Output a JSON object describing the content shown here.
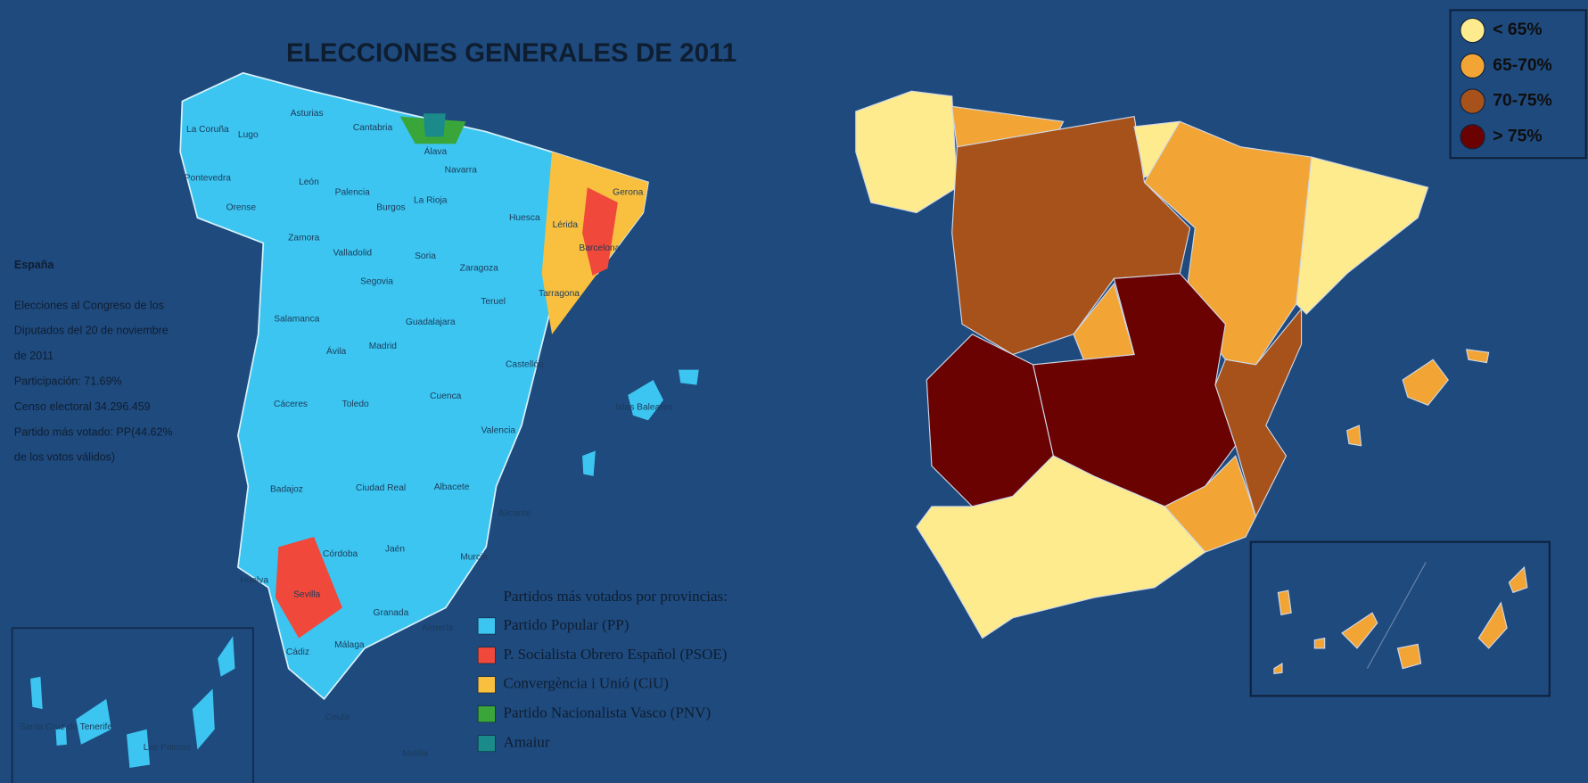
{
  "left_map": {
    "title": "ELECCIONES GENERALES DE 2011",
    "info": {
      "heading": "España",
      "lines": [
        "Elecciones al Congreso de los",
        "Diputados del 20 de noviembre",
        "de 2011",
        "Participación: 71.69%",
        "Censo electoral 34.296.459",
        "Partido más votado: PP(44.62%",
        "de los votos válidos)"
      ]
    },
    "province_labels": [
      "La Coruña",
      "Lugo",
      "Asturias",
      "Cantabria",
      "Pontevedra",
      "Orense",
      "León",
      "Palencia",
      "Burgos",
      "La Rioja",
      "Navarra",
      "Huesca",
      "Lérida",
      "Gerona",
      "Barcelona",
      "Tarragona",
      "Zamora",
      "Valladolid",
      "Soria",
      "Zaragoza",
      "Segovia",
      "Salamanca",
      "Ávila",
      "Madrid",
      "Guadalajara",
      "Teruel",
      "Castellón",
      "Cáceres",
      "Toledo",
      "Cuenca",
      "Valencia",
      "Badajoz",
      "Ciudad Real",
      "Albacete",
      "Alicante",
      "Islas Baleares",
      "Huelva",
      "Sevilla",
      "Córdoba",
      "Jaén",
      "Murcia",
      "Granada",
      "Almería",
      "Cádiz",
      "Málaga",
      "Ceuta",
      "Melilla",
      "Santa Cruz de Tenerife",
      "Las Palmas",
      "Álava"
    ],
    "legend": {
      "title": "Partidos más votados por provincias:",
      "items": [
        {
          "label": "Partido Popular (PP)",
          "color": "#3cc5f0"
        },
        {
          "label": "P. Socialista Obrero Español (PSOE)",
          "color": "#f0483a"
        },
        {
          "label": "Convergència i Unió (CiU)",
          "color": "#f9bf3e"
        },
        {
          "label": "Partido Nacionalista Vasco (PNV)",
          "color": "#3aa63a"
        },
        {
          "label": "Amaiur",
          "color": "#1a8a8a"
        }
      ]
    }
  },
  "right_map": {
    "legend": [
      {
        "label": "< 65%",
        "color": "#fdeb8e"
      },
      {
        "label": "65-70%",
        "color": "#f2a535"
      },
      {
        "label": "70-75%",
        "color": "#a8521b"
      },
      {
        "label": "> 75%",
        "color": "#6a0202"
      }
    ]
  }
}
